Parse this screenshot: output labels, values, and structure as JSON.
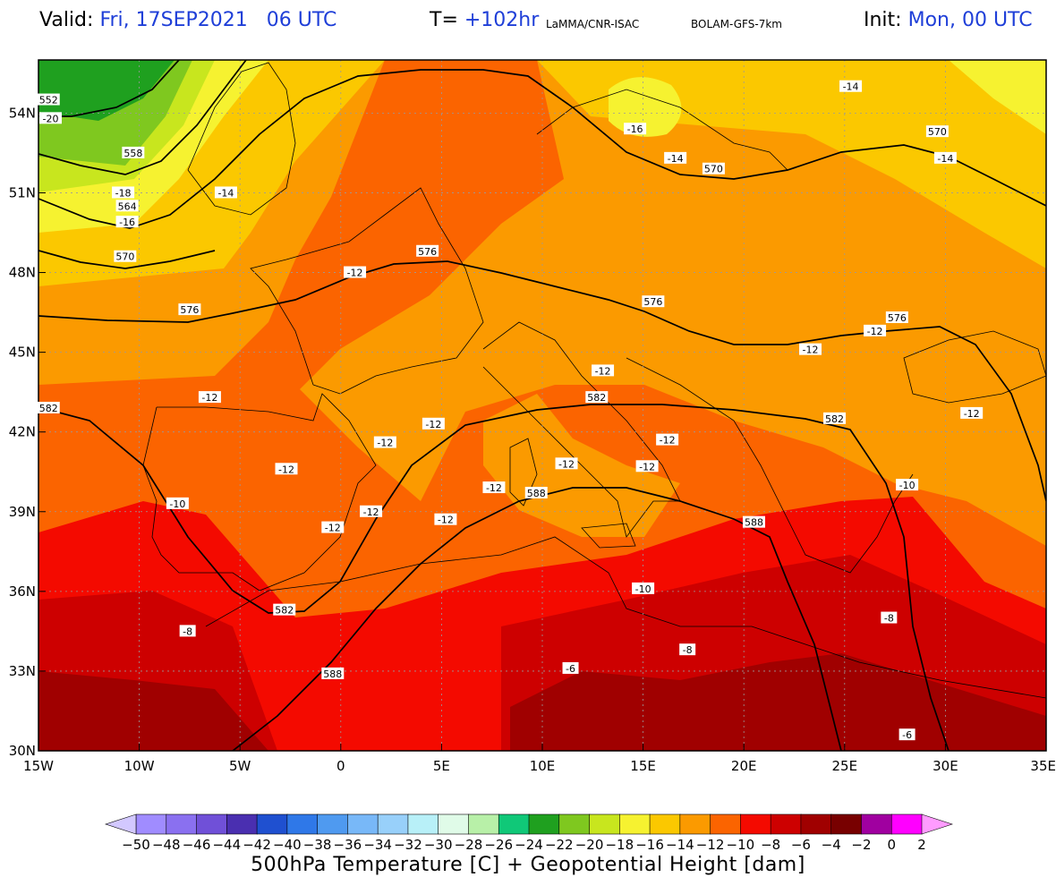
{
  "header": {
    "valid_label": "Valid:",
    "valid_value": "Fri, 17SEP2021   06 UTC",
    "lead_label": "T=",
    "lead_value": "+102hr",
    "source": "LaMMA/CNR-ISAC",
    "model": "BOLAM-GFS-7km",
    "init_label": "Init:",
    "init_value": "Mon, 00 UTC"
  },
  "colors": {
    "c_m22": "#1fa01f",
    "c_m20": "#7fc81f",
    "c_m18": "#c8e61e",
    "c_m16": "#f6f230",
    "c_m14": "#fbc800",
    "c_m12": "#fb9a00",
    "c_m10": "#fb6400",
    "c_m8": "#f40a00",
    "c_m6": "#cd0000",
    "c_m4": "#a00000",
    "contour": "#000000"
  },
  "lon_ticks": [
    "15W",
    "10W",
    "5W",
    "0",
    "5E",
    "10E",
    "15E",
    "20E",
    "25E",
    "30E",
    "35E"
  ],
  "lat_ticks": [
    "54N",
    "51N",
    "48N",
    "45N",
    "42N",
    "39N",
    "36N",
    "33N",
    "30N"
  ],
  "height_labels": [
    {
      "t": "552",
      "lon": -14.5,
      "lat": 54.5
    },
    {
      "t": "558",
      "lon": -10.3,
      "lat": 52.5
    },
    {
      "t": "564",
      "lon": -10.6,
      "lat": 50.5
    },
    {
      "t": "570",
      "lon": -10.7,
      "lat": 48.6
    },
    {
      "t": "576",
      "lon": -7.5,
      "lat": 46.6
    },
    {
      "t": "576",
      "lon": 4.3,
      "lat": 48.8
    },
    {
      "t": "576",
      "lon": 15.5,
      "lat": 46.9
    },
    {
      "t": "576",
      "lon": 27.6,
      "lat": 46.3
    },
    {
      "t": "570",
      "lon": 18.5,
      "lat": 51.9
    },
    {
      "t": "570",
      "lon": 29.6,
      "lat": 53.3
    },
    {
      "t": "582",
      "lon": -14.5,
      "lat": 42.9
    },
    {
      "t": "582",
      "lon": 12.7,
      "lat": 43.3
    },
    {
      "t": "582",
      "lon": 24.5,
      "lat": 42.5
    },
    {
      "t": "588",
      "lon": 9.7,
      "lat": 39.7
    },
    {
      "t": "588",
      "lon": 20.5,
      "lat": 38.6
    },
    {
      "t": "582",
      "lon": -2.8,
      "lat": 35.3
    },
    {
      "t": "588",
      "lon": -0.4,
      "lat": 32.9
    }
  ],
  "temp_labels": [
    {
      "t": "-20",
      "lon": -14.4,
      "lat": 53.8
    },
    {
      "t": "-18",
      "lon": -10.8,
      "lat": 51.0
    },
    {
      "t": "-16",
      "lon": -10.6,
      "lat": 49.9
    },
    {
      "t": "-14",
      "lon": -5.7,
      "lat": 51.0
    },
    {
      "t": "-16",
      "lon": 14.6,
      "lat": 53.4
    },
    {
      "t": "-14",
      "lon": 16.6,
      "lat": 52.3
    },
    {
      "t": "-14",
      "lon": 25.3,
      "lat": 55.0
    },
    {
      "t": "-14",
      "lon": 30.0,
      "lat": 52.3
    },
    {
      "t": "-12",
      "lon": 0.7,
      "lat": 48.0
    },
    {
      "t": "-12",
      "lon": -6.5,
      "lat": 43.3
    },
    {
      "t": "-12",
      "lon": 13.0,
      "lat": 44.3
    },
    {
      "t": "-12",
      "lon": 4.6,
      "lat": 42.3
    },
    {
      "t": "-12",
      "lon": 2.2,
      "lat": 41.6
    },
    {
      "t": "-12",
      "lon": -2.7,
      "lat": 40.6
    },
    {
      "t": "-12",
      "lon": -0.4,
      "lat": 38.4
    },
    {
      "t": "-12",
      "lon": 1.5,
      "lat": 39.0
    },
    {
      "t": "-12",
      "lon": 5.2,
      "lat": 38.7
    },
    {
      "t": "-12",
      "lon": 7.6,
      "lat": 39.9
    },
    {
      "t": "-12",
      "lon": 11.2,
      "lat": 40.8
    },
    {
      "t": "-12",
      "lon": 16.2,
      "lat": 41.7
    },
    {
      "t": "-12",
      "lon": 15.2,
      "lat": 40.7
    },
    {
      "t": "-12",
      "lon": 23.3,
      "lat": 45.1
    },
    {
      "t": "-12",
      "lon": 26.5,
      "lat": 45.8
    },
    {
      "t": "-12",
      "lon": 31.3,
      "lat": 42.7
    },
    {
      "t": "-10",
      "lon": -8.1,
      "lat": 39.3
    },
    {
      "t": "-10",
      "lon": 28.1,
      "lat": 40.0
    },
    {
      "t": "-10",
      "lon": 15.0,
      "lat": 36.1
    },
    {
      "t": "-8",
      "lon": -7.6,
      "lat": 34.5
    },
    {
      "t": "-8",
      "lon": 17.2,
      "lat": 33.8
    },
    {
      "t": "-8",
      "lon": 27.2,
      "lat": 35.0
    },
    {
      "t": "-6",
      "lon": 11.4,
      "lat": 33.1
    },
    {
      "t": "-6",
      "lon": 28.1,
      "lat": 30.6
    }
  ],
  "colorbar": {
    "title": "500hPa Temperature [C] + Geopotential Height [dam]",
    "labels": [
      "−50",
      "−48",
      "−46",
      "−44",
      "−42",
      "−40",
      "−38",
      "−36",
      "−34",
      "−32",
      "−30",
      "−28",
      "−26",
      "−24",
      "−22",
      "−20",
      "−18",
      "−16",
      "−14",
      "−12",
      "−10",
      "−8",
      "−6",
      "−4",
      "−2",
      "0",
      "2"
    ],
    "colors": [
      "#a08cff",
      "#8a70f0",
      "#7050d8",
      "#4a2fb0",
      "#1f50d0",
      "#2f78e8",
      "#4f9af0",
      "#78b8f8",
      "#98d0fa",
      "#b8f0f8",
      "#e0fbe8",
      "#b8f0a8",
      "#10c878",
      "#1fa01f",
      "#7fc81f",
      "#c8e61e",
      "#f6f230",
      "#fbc800",
      "#fb9a00",
      "#fb6400",
      "#f40a00",
      "#cd0000",
      "#a00000",
      "#780000",
      "#a000a0",
      "#ff00ff"
    ],
    "end_left": "#d2c8ff",
    "end_right": "#ff9bff"
  }
}
